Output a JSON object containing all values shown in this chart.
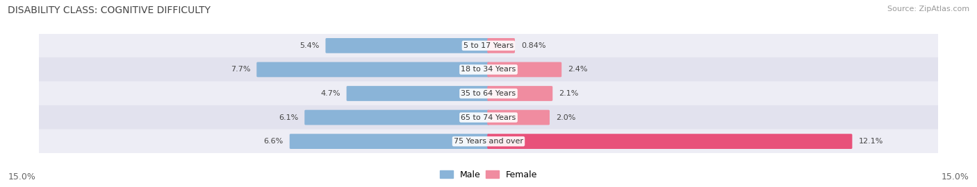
{
  "title": "DISABILITY CLASS: COGNITIVE DIFFICULTY",
  "source": "Source: ZipAtlas.com",
  "categories": [
    "5 to 17 Years",
    "18 to 34 Years",
    "35 to 64 Years",
    "65 to 74 Years",
    "75 Years and over"
  ],
  "male_values": [
    5.4,
    7.7,
    4.7,
    6.1,
    6.6
  ],
  "female_values": [
    0.84,
    2.4,
    2.1,
    2.0,
    12.1
  ],
  "male_color": "#8ab4d8",
  "female_color": "#f08ca0",
  "female_color_bright": "#e8517a",
  "row_bg_color_light": "#ededf5",
  "row_bg_color_dark": "#e2e2ee",
  "axis_max": 15.0,
  "axis_label_left": "15.0%",
  "axis_label_right": "15.0%",
  "title_fontsize": 10,
  "source_fontsize": 8,
  "label_fontsize": 8,
  "category_fontsize": 8,
  "tick_fontsize": 9,
  "legend_fontsize": 9,
  "background_color": "#ffffff"
}
